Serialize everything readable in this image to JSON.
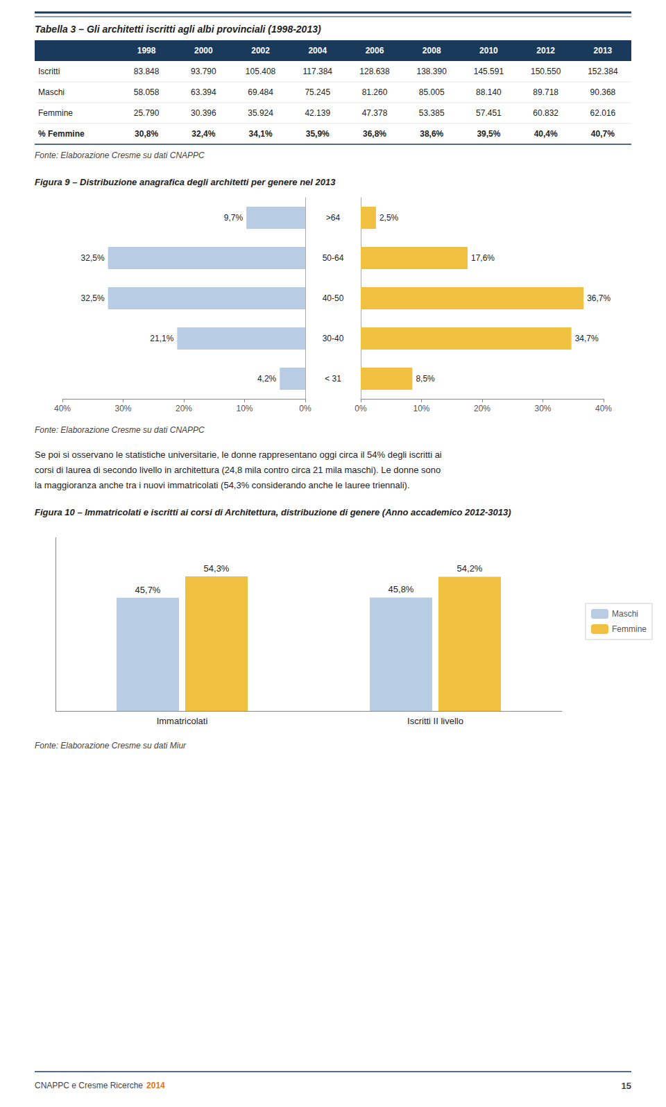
{
  "chart_data": [
    {
      "type": "table",
      "title": "Tabella 3 – Gli architetti iscritti agli albi provinciali (1998-2013)",
      "color": "#1a3a5c",
      "categories": [
        "1998",
        "2000",
        "2002",
        "2004",
        "2006",
        "2008",
        "2010",
        "2012",
        "2013"
      ],
      "series": [
        {
          "name": "Iscritti",
          "values": [
            83848,
            93790,
            105408,
            117384,
            128638,
            138390,
            145591,
            150550,
            152384
          ],
          "value_labels": [
            "83.848",
            "93.790",
            "105.408",
            "117.384",
            "128.638",
            "138.390",
            "145.591",
            "150.550",
            "152.384"
          ]
        },
        {
          "name": "Maschi",
          "values": [
            58058,
            63394,
            69484,
            75245,
            81260,
            85005,
            88140,
            89718,
            90368
          ],
          "value_labels": [
            "58.058",
            "63.394",
            "69.484",
            "75.245",
            "81.260",
            "85.005",
            "88.140",
            "89.718",
            "90.368"
          ]
        },
        {
          "name": "Femmine",
          "values": [
            25790,
            30396,
            35924,
            42139,
            47378,
            53385,
            57451,
            60832,
            62016
          ],
          "value_labels": [
            "25.790",
            "30.396",
            "35.924",
            "42.139",
            "47.378",
            "53.385",
            "57.451",
            "60.832",
            "62.016"
          ]
        },
        {
          "name": "% Femmine",
          "values": [
            30.8,
            32.4,
            34.1,
            35.9,
            36.8,
            38.6,
            39.5,
            40.4,
            40.7
          ],
          "value_labels": [
            "30,8%",
            "32,4%",
            "34,1%",
            "35,9%",
            "36,8%",
            "38,6%",
            "39,5%",
            "40,4%",
            "40,7%"
          ]
        }
      ],
      "annotations": [
        "Fonte: Elaborazione Cresme su dati CNAPPC"
      ]
    },
    {
      "type": "bar",
      "orientation": "horizontal",
      "title": "Figura 9 – Distribuzione anagrafica degli architetti per genere nel 2013",
      "categories": [
        ">64",
        "50-64",
        "40-50",
        "30-40",
        "< 31"
      ],
      "series": [
        {
          "color": "#b8cce4",
          "values": [
            9.7,
            32.5,
            32.5,
            21.1,
            4.2
          ],
          "value_labels": [
            "9,7%",
            "32,5%",
            "32,5%",
            "21,1%",
            "4,2%"
          ]
        },
        {
          "color": "#f0c040",
          "values": [
            2.5,
            17.6,
            36.7,
            34.7,
            8.5
          ],
          "value_labels": [
            "2,5%",
            "17,6%",
            "36,7%",
            "34,7%",
            "8,5%"
          ]
        }
      ],
      "xlim": [
        0,
        40
      ],
      "xticks": [
        {
          "value": 0,
          "label": "0%"
        },
        {
          "value": 10,
          "label": "10%"
        },
        {
          "value": 20,
          "label": "20%"
        },
        {
          "value": 30,
          "label": "30%"
        },
        {
          "value": 40,
          "label": "40%"
        }
      ],
      "data_labels": true,
      "grid": false,
      "legend": false,
      "annotations": [
        "Fonte: Elaborazione Cresme su dati CNAPPC",
        "Se poi si osservano le statistiche universitarie, le donne rappresentano oggi circa il 54% degli iscritti ai",
        "corsi di laurea di secondo livello in architettura (24,8 mila contro circa 21 mila maschi). Le donne sono",
        "la maggioranza anche tra i nuovi immatricolati (54,3% considerando anche le lauree triennali)."
      ]
    },
    {
      "type": "bar",
      "title": "Figura 10 – Immatricolati e iscritti ai corsi di Architettura, distribuzione di genere (Anno accademico 2012-3013)",
      "categories": [
        "Immatricolati",
        "Iscritti II livello"
      ],
      "series": [
        {
          "name": "Maschi",
          "color": "#b8cce4",
          "values": [
            45.7,
            45.8
          ],
          "value_labels": [
            "45,7%",
            "45,8%"
          ]
        },
        {
          "name": "Femmine",
          "color": "#f0c040",
          "values": [
            54.3,
            54.2
          ],
          "value_labels": [
            "54,3%",
            "54,2%"
          ]
        }
      ],
      "ylim": [
        0,
        70
      ],
      "tick_labels": "x",
      "data_labels": true,
      "grid": false,
      "legend": "right",
      "annotations": [
        "Fonte: Elaborazione Cresme su dati Miur",
        "CNAPPC e Cresme Ricerche",
        "2014",
        "15"
      ]
    }
  ]
}
